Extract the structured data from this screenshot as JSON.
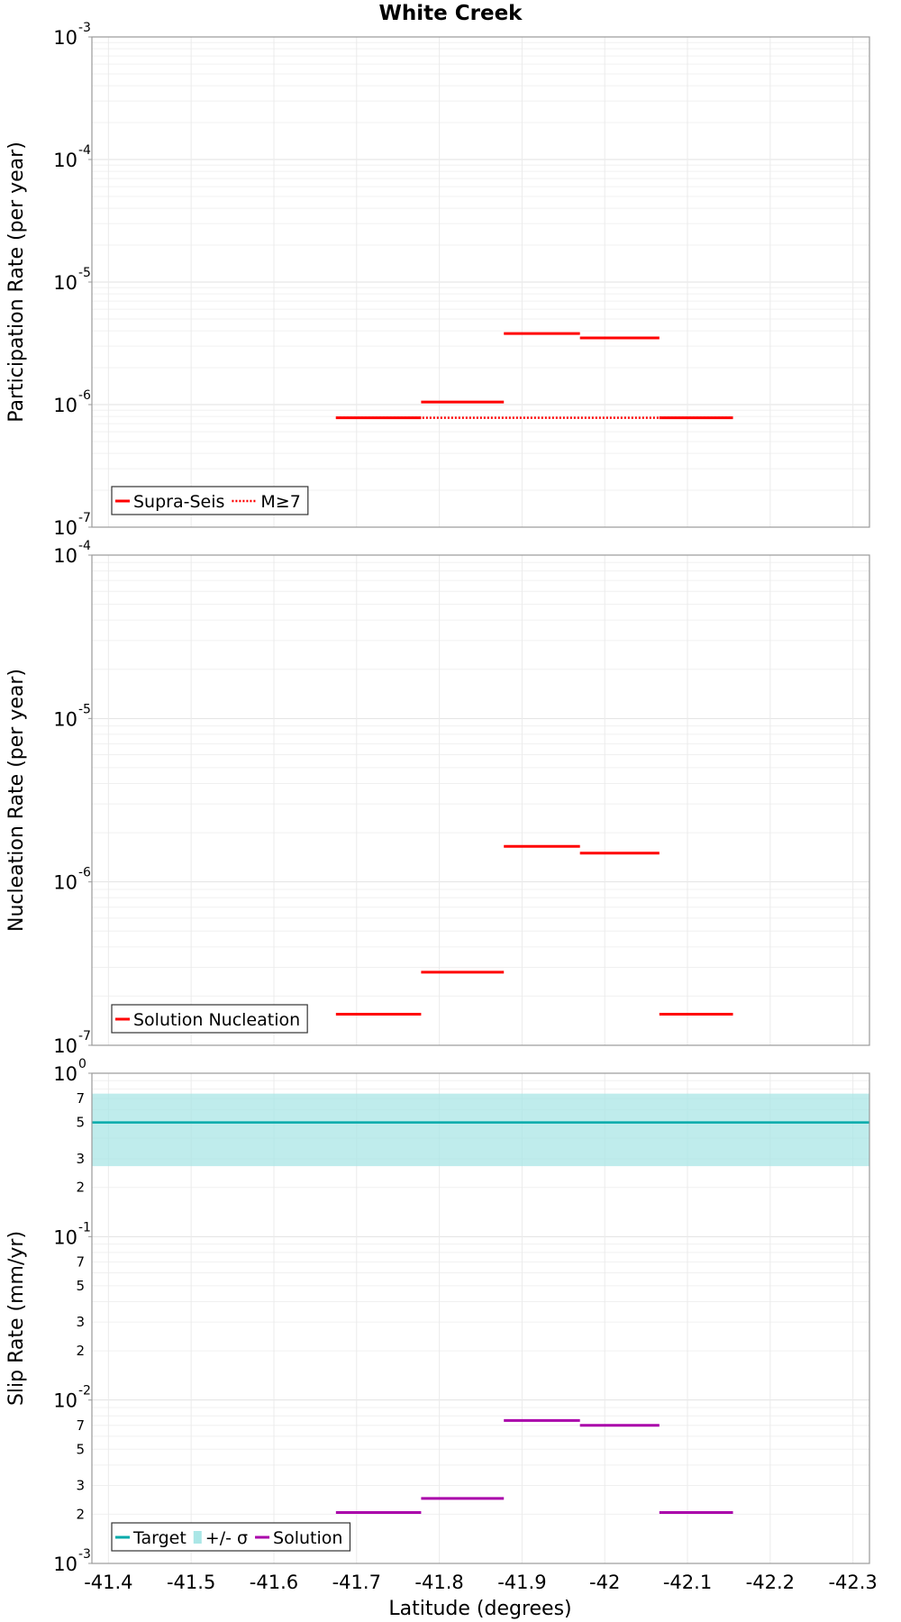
{
  "chart_data": [
    {
      "type": "line",
      "title": "White Creek",
      "xlabel": "Latitude (degrees)",
      "ylabel": "Participation Rate (per year)",
      "yscale": "log",
      "ylim": [
        1e-07,
        0.001
      ],
      "xlim": [
        -41.38,
        -42.32
      ],
      "xticks": [
        "-41.4",
        "-41.5",
        "-41.6",
        "-41.7",
        "-41.8",
        "-41.9",
        "-42",
        "-42.1",
        "-42.2",
        "-42.3"
      ],
      "xtick_values": [
        -41.4,
        -41.5,
        -41.6,
        -41.7,
        -41.8,
        -41.9,
        -42,
        -42.1,
        -42.2,
        -42.3
      ],
      "yticks": [
        {
          "base": "10",
          "exp": "-3"
        },
        {
          "base": "10",
          "exp": "-4"
        },
        {
          "base": "10",
          "exp": "-5"
        },
        {
          "base": "10",
          "exp": "-6"
        },
        {
          "base": "10",
          "exp": "-7"
        }
      ],
      "ytick_values": [
        0.001,
        0.0001,
        1e-05,
        1e-06,
        1e-07
      ],
      "legend_position": "bottom-left",
      "series": [
        {
          "name": "Supra-Seis",
          "color": "#ff0000",
          "style": "solid",
          "segments": [
            {
              "x": [
                -41.675,
                -41.778
              ],
              "y": 7.8e-07
            },
            {
              "x": [
                -41.778,
                -41.878
              ],
              "y": 1.05e-06
            },
            {
              "x": [
                -41.878,
                -41.97
              ],
              "y": 3.8e-06
            },
            {
              "x": [
                -41.97,
                -42.066
              ],
              "y": 3.5e-06
            },
            {
              "x": [
                -42.066,
                -42.155
              ],
              "y": 7.8e-07
            }
          ]
        },
        {
          "name": "M≥7",
          "color": "#ff0000",
          "style": "dotted",
          "segments": [
            {
              "x": [
                -41.675,
                -42.155
              ],
              "y": 7.8e-07
            }
          ]
        }
      ]
    },
    {
      "type": "line",
      "title": "",
      "xlabel": "",
      "ylabel": "Nucleation Rate (per year)",
      "yscale": "log",
      "ylim": [
        1e-07,
        0.0001
      ],
      "xlim": [
        -41.38,
        -42.32
      ],
      "yticks": [
        {
          "base": "10",
          "exp": "-4"
        },
        {
          "base": "10",
          "exp": "-5"
        },
        {
          "base": "10",
          "exp": "-6"
        },
        {
          "base": "10",
          "exp": "-7"
        }
      ],
      "ytick_values": [
        0.0001,
        1e-05,
        1e-06,
        1e-07
      ],
      "legend_position": "bottom-left",
      "series": [
        {
          "name": "Solution Nucleation",
          "color": "#ff0000",
          "style": "solid",
          "segments": [
            {
              "x": [
                -41.675,
                -41.778
              ],
              "y": 1.55e-07
            },
            {
              "x": [
                -41.778,
                -41.878
              ],
              "y": 2.8e-07
            },
            {
              "x": [
                -41.878,
                -41.97
              ],
              "y": 1.65e-06
            },
            {
              "x": [
                -41.97,
                -42.066
              ],
              "y": 1.5e-06
            },
            {
              "x": [
                -42.066,
                -42.155
              ],
              "y": 1.55e-07
            }
          ]
        }
      ]
    },
    {
      "type": "line",
      "title": "",
      "xlabel": "Latitude (degrees)",
      "ylabel": "Slip Rate (mm/yr)",
      "yscale": "log",
      "ylim": [
        0.001,
        1
      ],
      "xlim": [
        -41.38,
        -42.32
      ],
      "yticks": [
        {
          "base": "10",
          "exp": "0"
        },
        {
          "base": "10",
          "exp": "-1"
        },
        {
          "base": "10",
          "exp": "-2"
        },
        {
          "base": "10",
          "exp": "-3"
        }
      ],
      "ytick_values": [
        1,
        0.1,
        0.01,
        0.001
      ],
      "minor_tick_labels": [
        "7",
        "5",
        "3",
        "2"
      ],
      "minor_tick_multipliers": [
        7,
        5,
        3,
        2
      ],
      "legend_position": "bottom-left",
      "target": {
        "name": "Target",
        "value": 0.5,
        "color": "#00aaaa"
      },
      "band": {
        "name": "+/- σ",
        "lower": 0.27,
        "upper": 0.75,
        "color": "#aae6e6"
      },
      "series": [
        {
          "name": "Solution",
          "color": "#aa00aa",
          "style": "solid",
          "segments": [
            {
              "x": [
                -41.675,
                -41.778
              ],
              "y": 0.00205
            },
            {
              "x": [
                -41.778,
                -41.878
              ],
              "y": 0.0025
            },
            {
              "x": [
                -41.878,
                -41.97
              ],
              "y": 0.0075
            },
            {
              "x": [
                -41.97,
                -42.066
              ],
              "y": 0.007
            },
            {
              "x": [
                -42.066,
                -42.155
              ],
              "y": 0.00205
            }
          ]
        }
      ]
    }
  ]
}
